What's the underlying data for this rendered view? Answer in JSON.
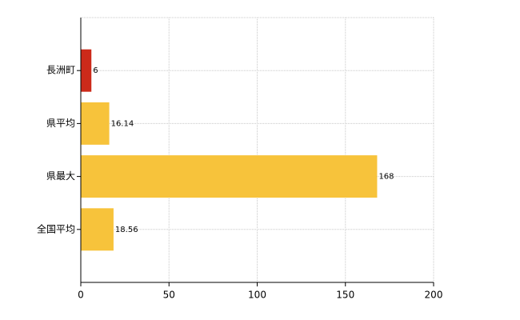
{
  "chart_data": {
    "type": "hbar",
    "categories": [
      "長洲町",
      "県平均",
      "県最大",
      "全国平均"
    ],
    "values": [
      6,
      16.14,
      168,
      18.56
    ],
    "colors": [
      "#cc2a1a",
      "#f7c33b",
      "#f7c33b",
      "#f7c33b"
    ],
    "xlim": [
      0,
      200
    ],
    "xticks": [
      0,
      50,
      100,
      150,
      200
    ],
    "grid": true
  }
}
